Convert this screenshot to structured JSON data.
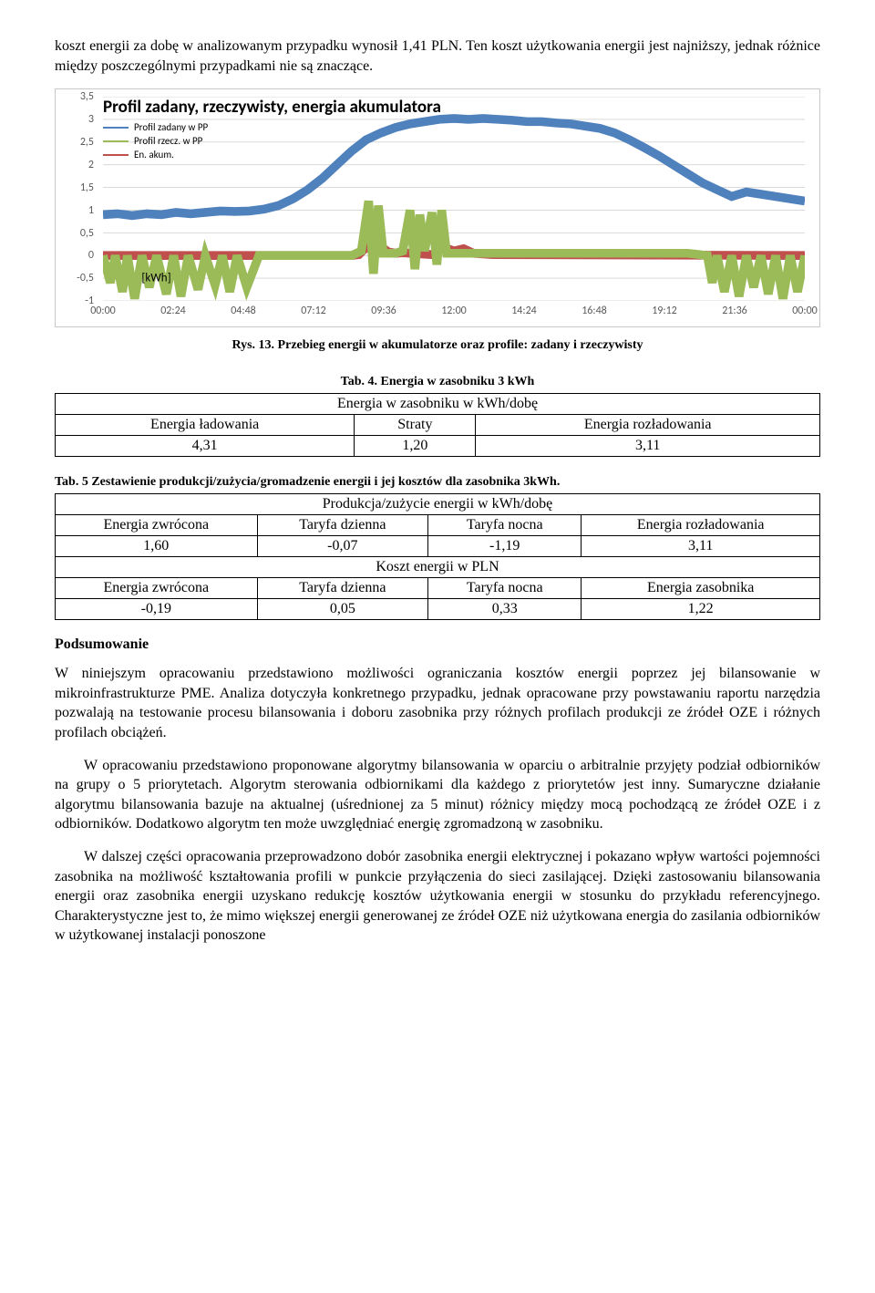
{
  "intro_text": "koszt energii za dobę w analizowanym przypadku wynosił 1,41 PLN. Ten koszt użytkowania energii jest najniższy, jednak różnice między poszczególnymi przypadkami nie są znaczące.",
  "chart": {
    "type": "line",
    "title": "Profil zadany, rzeczywisty, energia akumulatora",
    "title_fontsize": 19,
    "font_family": "Calibri",
    "background_color": "#ffffff",
    "border_color": "#c9c9c9",
    "grid_color": "#d9d9d9",
    "axis_text_color": "#595959",
    "legend": [
      {
        "label": "Profil zadany w PP",
        "color": "#4f81bd"
      },
      {
        "label": "Profil rzecz. w PP",
        "color": "#9bbb59"
      },
      {
        "label": "En. akum.",
        "color": "#c0504d"
      }
    ],
    "y_ticks": [
      "-1",
      "-0,5",
      "0",
      "0,5",
      "1",
      "1,5",
      "2",
      "2,5",
      "3",
      "3,5"
    ],
    "ylim": [
      -1,
      3.5
    ],
    "x_labels": [
      "00:00",
      "02:24",
      "04:48",
      "07:12",
      "09:36",
      "12:00",
      "14:24",
      "16:48",
      "19:12",
      "21:36",
      "00:00"
    ],
    "xlim_minutes": [
      0,
      1440
    ],
    "axis_label": "[kWh]",
    "line_width": 1.6,
    "series_zadany": [
      [
        0,
        0.9
      ],
      [
        30,
        0.92
      ],
      [
        60,
        0.88
      ],
      [
        90,
        0.92
      ],
      [
        120,
        0.9
      ],
      [
        150,
        0.95
      ],
      [
        180,
        0.92
      ],
      [
        210,
        0.95
      ],
      [
        240,
        0.98
      ],
      [
        270,
        0.97
      ],
      [
        300,
        0.98
      ],
      [
        330,
        1.02
      ],
      [
        360,
        1.1
      ],
      [
        390,
        1.25
      ],
      [
        420,
        1.45
      ],
      [
        450,
        1.7
      ],
      [
        480,
        2.0
      ],
      [
        510,
        2.3
      ],
      [
        540,
        2.55
      ],
      [
        570,
        2.7
      ],
      [
        600,
        2.82
      ],
      [
        630,
        2.9
      ],
      [
        660,
        2.95
      ],
      [
        690,
        3.0
      ],
      [
        720,
        3.02
      ],
      [
        750,
        3.0
      ],
      [
        780,
        3.02
      ],
      [
        810,
        3.0
      ],
      [
        840,
        2.98
      ],
      [
        870,
        2.95
      ],
      [
        900,
        2.95
      ],
      [
        930,
        2.92
      ],
      [
        960,
        2.9
      ],
      [
        990,
        2.85
      ],
      [
        1020,
        2.8
      ],
      [
        1050,
        2.7
      ],
      [
        1080,
        2.55
      ],
      [
        1110,
        2.38
      ],
      [
        1140,
        2.2
      ],
      [
        1170,
        2.0
      ],
      [
        1200,
        1.8
      ],
      [
        1230,
        1.6
      ],
      [
        1260,
        1.45
      ],
      [
        1290,
        1.3
      ],
      [
        1320,
        1.4
      ],
      [
        1350,
        1.35
      ],
      [
        1380,
        1.3
      ],
      [
        1410,
        1.25
      ],
      [
        1440,
        1.2
      ]
    ],
    "series_rzecz": [
      [
        0,
        0
      ],
      [
        15,
        -0.6
      ],
      [
        25,
        0
      ],
      [
        40,
        -0.8
      ],
      [
        50,
        0
      ],
      [
        65,
        -0.95
      ],
      [
        80,
        0
      ],
      [
        95,
        -0.7
      ],
      [
        110,
        0
      ],
      [
        130,
        -0.85
      ],
      [
        145,
        0
      ],
      [
        160,
        -0.9
      ],
      [
        175,
        0
      ],
      [
        195,
        -0.75
      ],
      [
        210,
        0
      ],
      [
        230,
        -0.65
      ],
      [
        245,
        0
      ],
      [
        260,
        -0.8
      ],
      [
        275,
        0
      ],
      [
        295,
        -0.7
      ],
      [
        320,
        0
      ],
      [
        360,
        0
      ],
      [
        400,
        0
      ],
      [
        450,
        0
      ],
      [
        480,
        0
      ],
      [
        510,
        0
      ],
      [
        530,
        0.1
      ],
      [
        545,
        1.2
      ],
      [
        555,
        -0.4
      ],
      [
        565,
        1.1
      ],
      [
        575,
        0.05
      ],
      [
        585,
        0.05
      ],
      [
        600,
        0.05
      ],
      [
        615,
        0.1
      ],
      [
        630,
        1.0
      ],
      [
        640,
        -0.3
      ],
      [
        650,
        0.9
      ],
      [
        660,
        0.1
      ],
      [
        675,
        0.95
      ],
      [
        685,
        -0.2
      ],
      [
        695,
        1.0
      ],
      [
        705,
        0.05
      ],
      [
        720,
        0.05
      ],
      [
        760,
        0.05
      ],
      [
        800,
        0.05
      ],
      [
        850,
        0.05
      ],
      [
        900,
        0.05
      ],
      [
        950,
        0.05
      ],
      [
        1000,
        0.05
      ],
      [
        1050,
        0.05
      ],
      [
        1100,
        0.05
      ],
      [
        1150,
        0.05
      ],
      [
        1200,
        0.05
      ],
      [
        1240,
        0
      ],
      [
        1250,
        -0.6
      ],
      [
        1260,
        0
      ],
      [
        1275,
        -0.8
      ],
      [
        1290,
        0
      ],
      [
        1305,
        -0.9
      ],
      [
        1320,
        0
      ],
      [
        1335,
        -0.7
      ],
      [
        1350,
        0
      ],
      [
        1365,
        -0.85
      ],
      [
        1380,
        0
      ],
      [
        1395,
        -0.95
      ],
      [
        1410,
        0
      ],
      [
        1425,
        -0.8
      ],
      [
        1440,
        0
      ]
    ],
    "series_akum": [
      [
        0,
        0
      ],
      [
        510,
        0
      ],
      [
        525,
        0.02
      ],
      [
        540,
        0.18
      ],
      [
        555,
        0.12
      ],
      [
        570,
        0.2
      ],
      [
        585,
        0.08
      ],
      [
        600,
        0.05
      ],
      [
        615,
        0.06
      ],
      [
        675,
        0.02
      ],
      [
        700,
        0.18
      ],
      [
        720,
        0.1
      ],
      [
        740,
        0.15
      ],
      [
        760,
        0.05
      ],
      [
        800,
        0.02
      ],
      [
        1440,
        0
      ]
    ]
  },
  "fig_caption": "Rys. 13. Przebieg energii w akumulatorze oraz profile: zadany i rzeczywisty",
  "table4": {
    "caption": "Tab. 4. Energia w zasobniku 3 kWh",
    "header_span": "Energia w zasobniku w kWh/dobę",
    "columns": [
      "Energia ładowania",
      "Straty",
      "Energia rozładowania"
    ],
    "values": [
      "4,31",
      "1,20",
      "3,11"
    ]
  },
  "table5": {
    "caption": "Tab. 5 Zestawienie produkcji/zużycia/gromadzenie energii i jej kosztów dla zasobnika 3kWh.",
    "header1_span": "Produkcja/zużycie energii w kWh/dobę",
    "row1_cols": [
      "Energia zwrócona",
      "Taryfa dzienna",
      "Taryfa nocna",
      "Energia rozładowania"
    ],
    "row1_vals": [
      "1,60",
      "-0,07",
      "-1,19",
      "3,11"
    ],
    "header2_span": "Koszt energii w PLN",
    "row2_cols": [
      "Energia zwrócona",
      "Taryfa dzienna",
      "Taryfa nocna",
      "Energia zasobnika"
    ],
    "row2_vals": [
      "-0,19",
      "0,05",
      "0,33",
      "1,22"
    ]
  },
  "section_title": "Podsumowanie",
  "body_paragraphs": [
    "W niniejszym opracowaniu przedstawiono możliwości ograniczania kosztów energii poprzez jej bilansowanie w mikroinfrastrukturze PME. Analiza dotyczyła konkretnego przypadku, jednak opracowane przy powstawaniu raportu narzędzia pozwalają na testowanie procesu bilansowania i doboru zasobnika przy różnych profilach produkcji ze źródeł OZE i różnych profilach obciążeń.",
    "W opracowaniu przedstawiono proponowane algorytmy bilansowania w oparciu o arbitralnie przyjęty podział odbiorników na grupy o 5 priorytetach. Algorytm sterowania odbiornikami dla każdego z priorytetów jest inny. Sumaryczne działanie algorytmu bilansowania bazuje na aktualnej (uśrednionej za 5 minut) różnicy między mocą pochodzącą ze źródeł OZE i z odbiorników. Dodatkowo algorytm ten może uwzględniać energię zgromadzoną w zasobniku.",
    "W dalszej części opracowania przeprowadzono dobór zasobnika energii elektrycznej i pokazano wpływ wartości pojemności zasobnika na możliwość kształtowania profili w punkcie przyłączenia do sieci zasilającej. Dzięki zastosowaniu bilansowania energii oraz zasobnika energii uzyskano redukcję kosztów użytkowania energii w stosunku do przykładu referencyjnego. Charakterystyczne jest to, że mimo większej energii generowanej ze źródeł OZE niż użytkowana energia do zasilania odbiorników w użytkowanej instalacji ponoszone"
  ]
}
